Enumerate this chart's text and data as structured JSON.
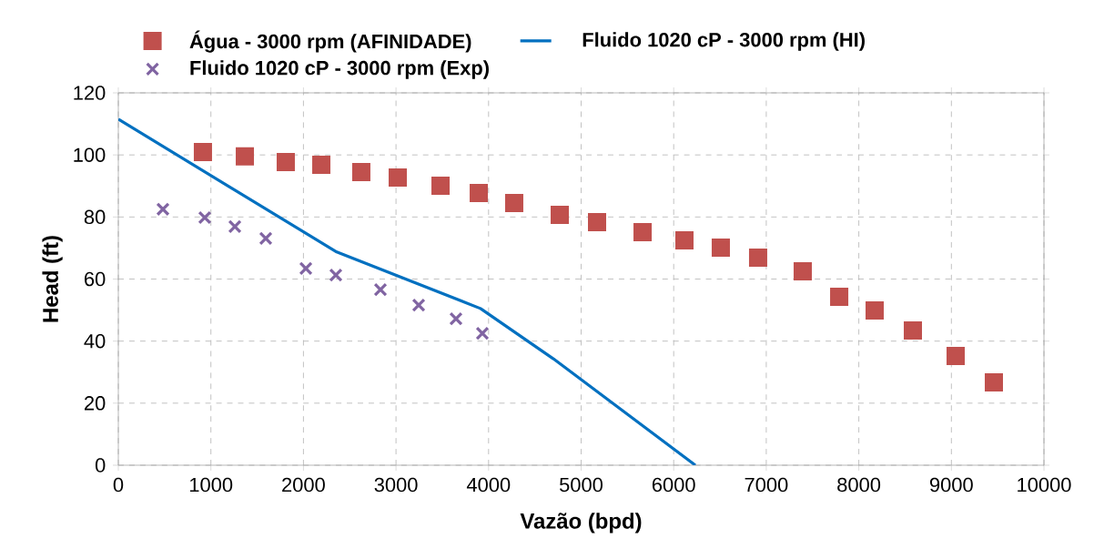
{
  "chart_data": {
    "type": "scatter",
    "xlabel": "Vazão (bpd)",
    "ylabel": "Head (ft)",
    "xlim": [
      0,
      10000
    ],
    "ylim": [
      0,
      120
    ],
    "xticks": [
      0,
      1000,
      2000,
      3000,
      4000,
      5000,
      6000,
      7000,
      8000,
      9000,
      10000
    ],
    "yticks": [
      0,
      20,
      40,
      60,
      80,
      100,
      120
    ],
    "grid": true,
    "legend": "top",
    "series": [
      {
        "name": "Água - 3000 rpm (AFINIDADE)",
        "marker": "square",
        "color": "#c0504d",
        "x": [
          914,
          1367,
          1809,
          2193,
          2625,
          3019,
          3481,
          3894,
          4277,
          4769,
          5172,
          5664,
          6116,
          6509,
          6912,
          7394,
          7788,
          8171,
          8584,
          9046,
          9459
        ],
        "values": [
          100.9,
          99.5,
          97.7,
          96.8,
          94.5,
          92.7,
          90.1,
          87.7,
          84.5,
          80.7,
          78.3,
          75.1,
          72.5,
          70.1,
          66.9,
          62.5,
          54.3,
          49.9,
          43.4,
          35.2,
          26.7
        ]
      },
      {
        "name": "Fluido 1020 cP - 3000 rpm (HI)",
        "type": "line",
        "line_style": "solid",
        "color": "#0070c0",
        "x": [
          0,
          2360,
          3913,
          4700,
          6234
        ],
        "values": [
          111.5,
          68.7,
          50.5,
          34.3,
          0
        ]
      },
      {
        "name": "Fluido 1020 cP - 3000 rpm (Exp)",
        "marker": "cross",
        "color": "#8064a2",
        "x": [
          482,
          934,
          1259,
          1593,
          2026,
          2350,
          2832,
          3245,
          3648,
          3933
        ],
        "values": [
          82.5,
          79.8,
          76.9,
          73.1,
          63.4,
          61.3,
          56.6,
          51.6,
          47.2,
          42.5
        ]
      }
    ]
  }
}
